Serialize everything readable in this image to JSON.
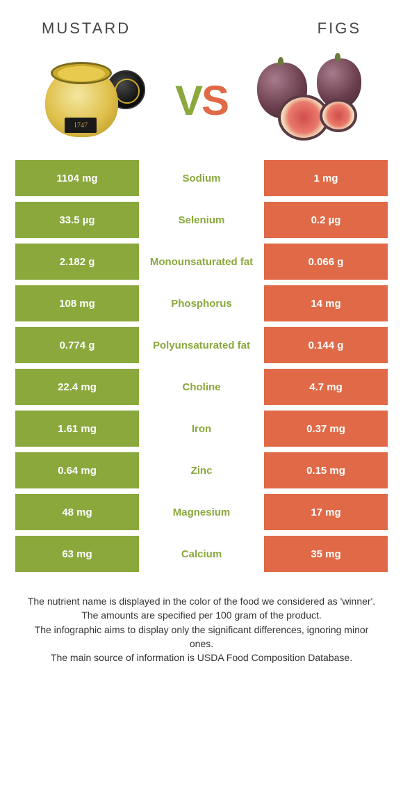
{
  "header": {
    "left_title": "MUSTARD",
    "right_title": "FIGS"
  },
  "vs": {
    "v": "V",
    "s": "S"
  },
  "mustard_illustration": {
    "label_year": "1747"
  },
  "colors": {
    "left_bg": "#8aa83c",
    "right_bg": "#e06a47",
    "mid_text_winner_left": "#8aa83c",
    "mid_text_winner_right": "#e06a47",
    "row_gap_bg": "#ffffff"
  },
  "table": {
    "type": "comparison-table",
    "columns": [
      "mustard_value",
      "nutrient",
      "figs_value"
    ],
    "rows": [
      {
        "left": "1104 mg",
        "label": "Sodium",
        "right": "1 mg",
        "winner": "left"
      },
      {
        "left": "33.5 µg",
        "label": "Selenium",
        "right": "0.2 µg",
        "winner": "left"
      },
      {
        "left": "2.182 g",
        "label": "Monounsaturated fat",
        "right": "0.066 g",
        "winner": "left"
      },
      {
        "left": "108 mg",
        "label": "Phosphorus",
        "right": "14 mg",
        "winner": "left"
      },
      {
        "left": "0.774 g",
        "label": "Polyunsaturated fat",
        "right": "0.144 g",
        "winner": "left"
      },
      {
        "left": "22.4 mg",
        "label": "Choline",
        "right": "4.7 mg",
        "winner": "left"
      },
      {
        "left": "1.61 mg",
        "label": "Iron",
        "right": "0.37 mg",
        "winner": "left"
      },
      {
        "left": "0.64 mg",
        "label": "Zinc",
        "right": "0.15 mg",
        "winner": "left"
      },
      {
        "left": "48 mg",
        "label": "Magnesium",
        "right": "17 mg",
        "winner": "left"
      },
      {
        "left": "63 mg",
        "label": "Calcium",
        "right": "35 mg",
        "winner": "left"
      }
    ]
  },
  "footer": {
    "line1": "The nutrient name is displayed in the color of the food we considered as 'winner'.",
    "line2": "The amounts are specified per 100 gram of the product.",
    "line3": "The infographic aims to display only the significant differences, ignoring minor ones.",
    "line4": "The main source of information is USDA Food Composition Database."
  }
}
